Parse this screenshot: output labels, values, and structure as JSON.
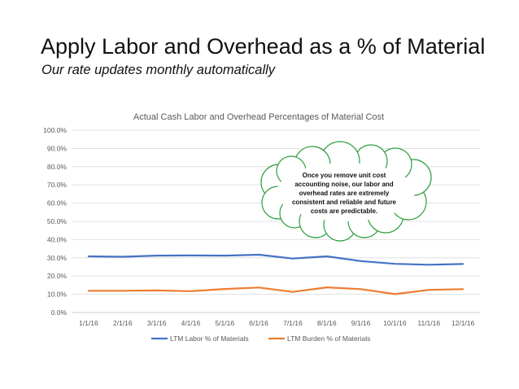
{
  "slide": {
    "title": "Apply Labor and Overhead as a % of Material",
    "subtitle": "Our rate updates monthly automatically"
  },
  "callout": {
    "lines": [
      "Once you remove unit cost",
      "accounting noise, our labor and",
      "overhead rates are extremely",
      "consistent and reliable and future",
      "costs are predictable."
    ]
  },
  "chart_data": {
    "type": "line",
    "title": "Actual Cash Labor and Overhead Percentages of Material Cost",
    "xlabel": "",
    "ylabel": "",
    "categories": [
      "1/1/16",
      "2/1/16",
      "3/1/16",
      "4/1/16",
      "5/1/16",
      "6/1/16",
      "7/1/16",
      "8/1/16",
      "9/1/16",
      "10/1/16",
      "11/1/16",
      "12/1/16"
    ],
    "ylim": [
      0,
      100
    ],
    "yticks": [
      "0.0%",
      "10.0%",
      "20.0%",
      "30.0%",
      "40.0%",
      "50.0%",
      "60.0%",
      "70.0%",
      "80.0%",
      "90.0%",
      "100.0%"
    ],
    "grid": true,
    "legend_position": "bottom",
    "series": [
      {
        "name": "LTM Labor % of Materials",
        "color": "#4472C4",
        "values": [
          30.8,
          30.6,
          31.2,
          31.3,
          31.2,
          31.7,
          29.6,
          30.8,
          28.2,
          26.7,
          26.2,
          26.6
        ]
      },
      {
        "name": "LTM Burden % of Materials",
        "color": "#ED7D31",
        "values": [
          11.9,
          11.9,
          12.1,
          11.7,
          12.9,
          13.7,
          11.3,
          13.8,
          12.8,
          10.1,
          12.4,
          12.8
        ]
      }
    ]
  }
}
